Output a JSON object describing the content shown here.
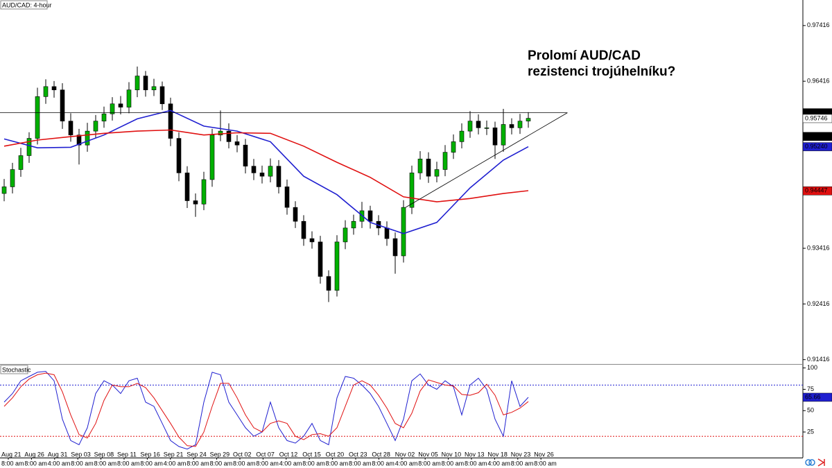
{
  "chart_data": [
    {
      "type": "candlestick",
      "title": "AUD/CAD: 4-hour",
      "annotation": [
        "Prolomí AUD/CAD",
        "rezistenci trojúhelníku?"
      ],
      "ylim": [
        0.9135,
        0.9785
      ],
      "yticks": [
        0.97416,
        0.96416,
        0.95416,
        0.94416,
        0.93416,
        0.92416,
        0.91416
      ],
      "up_color": "#00b000",
      "down_color": "#000000",
      "open": [
        0.944,
        0.9452,
        0.9483,
        0.9508,
        0.9539,
        0.9614,
        0.9632,
        0.9626,
        0.957,
        0.9545,
        0.9527,
        0.9552,
        0.957,
        0.9583,
        0.9601,
        0.9595,
        0.9626,
        0.9651,
        0.9626,
        0.9632,
        0.9601,
        0.9539,
        0.9477,
        0.9427,
        0.9421,
        0.9465,
        0.9545,
        0.9552,
        0.9533,
        0.9527,
        0.9489,
        0.9477,
        0.9471,
        0.9489,
        0.9452,
        0.9415,
        0.939,
        0.9359,
        0.9353,
        0.9291,
        0.9266,
        0.9353,
        0.9378,
        0.939,
        0.9409,
        0.939,
        0.9378,
        0.9359,
        0.9328,
        0.9415,
        0.9477,
        0.9502,
        0.9471,
        0.9483,
        0.9514,
        0.9533,
        0.9552,
        0.957,
        0.9558,
        0.9558,
        0.9527,
        0.9564,
        0.9558,
        0.957
      ],
      "high": [
        0.9466,
        0.9495,
        0.9522,
        0.955,
        0.963,
        0.9645,
        0.9642,
        0.9638,
        0.9584,
        0.9556,
        0.9567,
        0.9581,
        0.9596,
        0.9613,
        0.9615,
        0.964,
        0.9668,
        0.966,
        0.9646,
        0.9641,
        0.9612,
        0.955,
        0.9489,
        0.944,
        0.9479,
        0.9556,
        0.9589,
        0.9566,
        0.9545,
        0.9538,
        0.9502,
        0.949,
        0.9503,
        0.95,
        0.9465,
        0.9426,
        0.9401,
        0.9372,
        0.9364,
        0.9302,
        0.9365,
        0.9392,
        0.9402,
        0.9425,
        0.9418,
        0.9401,
        0.939,
        0.937,
        0.9428,
        0.949,
        0.9516,
        0.9514,
        0.9497,
        0.9527,
        0.9546,
        0.9566,
        0.9588,
        0.9582,
        0.9571,
        0.9569,
        0.9592,
        0.9575,
        0.9583,
        0.9586
      ],
      "low": [
        0.9426,
        0.944,
        0.947,
        0.9495,
        0.9528,
        0.9601,
        0.9612,
        0.9556,
        0.9533,
        0.9492,
        0.9515,
        0.954,
        0.9558,
        0.9571,
        0.9582,
        0.9584,
        0.9613,
        0.9614,
        0.9615,
        0.959,
        0.9525,
        0.9462,
        0.9414,
        0.9398,
        0.941,
        0.9452,
        0.9534,
        0.9521,
        0.9514,
        0.9476,
        0.9464,
        0.9458,
        0.946,
        0.944,
        0.9402,
        0.9378,
        0.9346,
        0.9341,
        0.9278,
        0.9245,
        0.9255,
        0.934,
        0.9366,
        0.9378,
        0.9377,
        0.9365,
        0.9346,
        0.9296,
        0.9316,
        0.9403,
        0.9465,
        0.9459,
        0.946,
        0.9471,
        0.9502,
        0.9521,
        0.954,
        0.9546,
        0.9545,
        0.9502,
        0.9515,
        0.9546,
        0.9547,
        0.9558
      ],
      "close": [
        0.9452,
        0.9483,
        0.9508,
        0.9539,
        0.9614,
        0.9632,
        0.9626,
        0.957,
        0.9545,
        0.9527,
        0.9552,
        0.957,
        0.9583,
        0.9601,
        0.9595,
        0.9626,
        0.9651,
        0.9626,
        0.9632,
        0.9601,
        0.9539,
        0.9477,
        0.9427,
        0.9421,
        0.9465,
        0.9545,
        0.9552,
        0.9533,
        0.9527,
        0.9489,
        0.9477,
        0.9471,
        0.9489,
        0.9452,
        0.9415,
        0.939,
        0.9359,
        0.9353,
        0.9291,
        0.9266,
        0.9353,
        0.9378,
        0.939,
        0.9409,
        0.939,
        0.9378,
        0.9359,
        0.9328,
        0.9415,
        0.9477,
        0.9502,
        0.9471,
        0.9483,
        0.9514,
        0.9533,
        0.9552,
        0.957,
        0.9558,
        0.9558,
        0.9527,
        0.9564,
        0.9558,
        0.957,
        0.9575
      ],
      "series": [
        {
          "color": "#1f1fd0",
          "x": [
            0,
            4,
            8,
            12,
            16,
            20,
            24,
            28,
            32,
            36,
            40,
            44,
            48,
            52,
            56,
            60,
            63
          ],
          "values": [
            0.9538,
            0.9522,
            0.9523,
            0.9545,
            0.9574,
            0.9589,
            0.9561,
            0.9552,
            0.9533,
            0.9471,
            0.9438,
            0.9388,
            0.9368,
            0.9388,
            0.945,
            0.95,
            0.9524
          ]
        },
        {
          "color": "#e01010",
          "x": [
            0,
            4,
            8,
            12,
            16,
            20,
            24,
            28,
            32,
            36,
            40,
            44,
            48,
            52,
            56,
            60,
            63
          ],
          "values": [
            0.9525,
            0.9536,
            0.9542,
            0.9548,
            0.9552,
            0.9554,
            0.9545,
            0.9549,
            0.9548,
            0.9525,
            0.9496,
            0.9469,
            0.9434,
            0.9425,
            0.9431,
            0.944,
            0.9445
          ]
        }
      ],
      "lines": [
        {
          "color": "#000000",
          "x": [
            -0.5,
            67.7
          ],
          "values": [
            0.9585,
            0.9585
          ]
        },
        {
          "color": "#000000",
          "x": [
            48.25,
            67.7
          ],
          "values": [
            0.9415,
            0.9585
          ]
        }
      ],
      "price_labels": [
        {
          "value": 0.9585,
          "label": "0.95850",
          "color": "#000000",
          "text_color": "#ffffff"
        },
        {
          "value": 0.95746,
          "color": "#ffffff",
          "text_color": "#000000"
        },
        {
          "value": 0.95424,
          "color": "#000000",
          "text_color": "#ffffff"
        },
        {
          "value": 0.9524,
          "label": "0.95240",
          "color": "#1f1fd0",
          "text_color": "#ffffff"
        },
        {
          "value": 0.94447,
          "color": "#e01010",
          "text_color": "#000000"
        }
      ]
    },
    {
      "type": "line",
      "title": "Stochastic",
      "ylim": [
        -5,
        103
      ],
      "yticks": [
        100,
        75,
        50,
        25
      ],
      "series": [
        {
          "color": "#1f1fd0",
          "values": [
            60,
            70,
            85,
            90,
            95,
            96,
            85,
            40,
            15,
            10,
            30,
            70,
            85,
            80,
            70,
            85,
            88,
            60,
            55,
            35,
            15,
            8,
            5,
            10,
            60,
            95,
            92,
            60,
            45,
            30,
            20,
            25,
            60,
            30,
            15,
            12,
            20,
            35,
            15,
            10,
            65,
            90,
            88,
            80,
            70,
            55,
            35,
            15,
            40,
            85,
            93,
            80,
            75,
            85,
            78,
            45,
            80,
            88,
            75,
            40,
            20,
            85,
            55,
            65.66
          ]
        },
        {
          "color": "#e01010",
          "values": [
            55,
            65,
            78,
            87,
            92,
            94,
            92,
            72,
            45,
            22,
            18,
            35,
            62,
            80,
            78,
            78,
            82,
            77,
            65,
            50,
            35,
            19,
            9,
            8,
            25,
            55,
            82,
            82,
            65,
            45,
            30,
            25,
            35,
            38,
            35,
            20,
            16,
            22,
            23,
            20,
            30,
            55,
            80,
            85,
            80,
            68,
            53,
            35,
            30,
            47,
            73,
            86,
            83,
            80,
            79,
            69,
            68,
            71,
            81,
            68,
            45,
            48,
            53,
            60.6
          ]
        }
      ],
      "levels": [
        {
          "value": 80,
          "color": "#1f1fd0"
        },
        {
          "value": 20,
          "color": "#e01010"
        }
      ],
      "price_labels": [
        {
          "value": 65.66,
          "color": "#1f1fd0",
          "text_color": "#ffffff"
        }
      ],
      "x_labels": [
        {
          "date": "Aug 21",
          "time": "8:00 am"
        },
        {
          "date": "Aug 26",
          "time": "8:00 am"
        },
        {
          "date": "Aug 31",
          "time": "4:00 am"
        },
        {
          "date": "Sep 03",
          "time": "8:00 am"
        },
        {
          "date": "Sep 08",
          "time": "8:00 am"
        },
        {
          "date": "Sep 11",
          "time": "8:00 am"
        },
        {
          "date": "Sep 16",
          "time": "8:00 am"
        },
        {
          "date": "Sep 21",
          "time": "4:00 am"
        },
        {
          "date": "Sep 24",
          "time": "8:00 am"
        },
        {
          "date": "Sep 29",
          "time": "8:00 am"
        },
        {
          "date": "Oct 02",
          "time": "8:00 am"
        },
        {
          "date": "Oct 07",
          "time": "8:00 am"
        },
        {
          "date": "Oct 12",
          "time": "4:00 am"
        },
        {
          "date": "Oct 15",
          "time": "8:00 am"
        },
        {
          "date": "Oct 20",
          "time": "8:00 am"
        },
        {
          "date": "Oct 23",
          "time": "8:00 am"
        },
        {
          "date": "Oct 28",
          "time": "8:00 am"
        },
        {
          "date": "Nov 02",
          "time": "4:00 am"
        },
        {
          "date": "Nov 05",
          "time": "8:00 am"
        },
        {
          "date": "Nov 10",
          "time": "8:00 am"
        },
        {
          "date": "Nov 13",
          "time": "8:00 am"
        },
        {
          "date": "Nov 18",
          "time": "4:00 am"
        },
        {
          "date": "Nov 23",
          "time": "8:00 am"
        },
        {
          "date": "Nov 26",
          "time": "8:00 am"
        }
      ]
    }
  ]
}
